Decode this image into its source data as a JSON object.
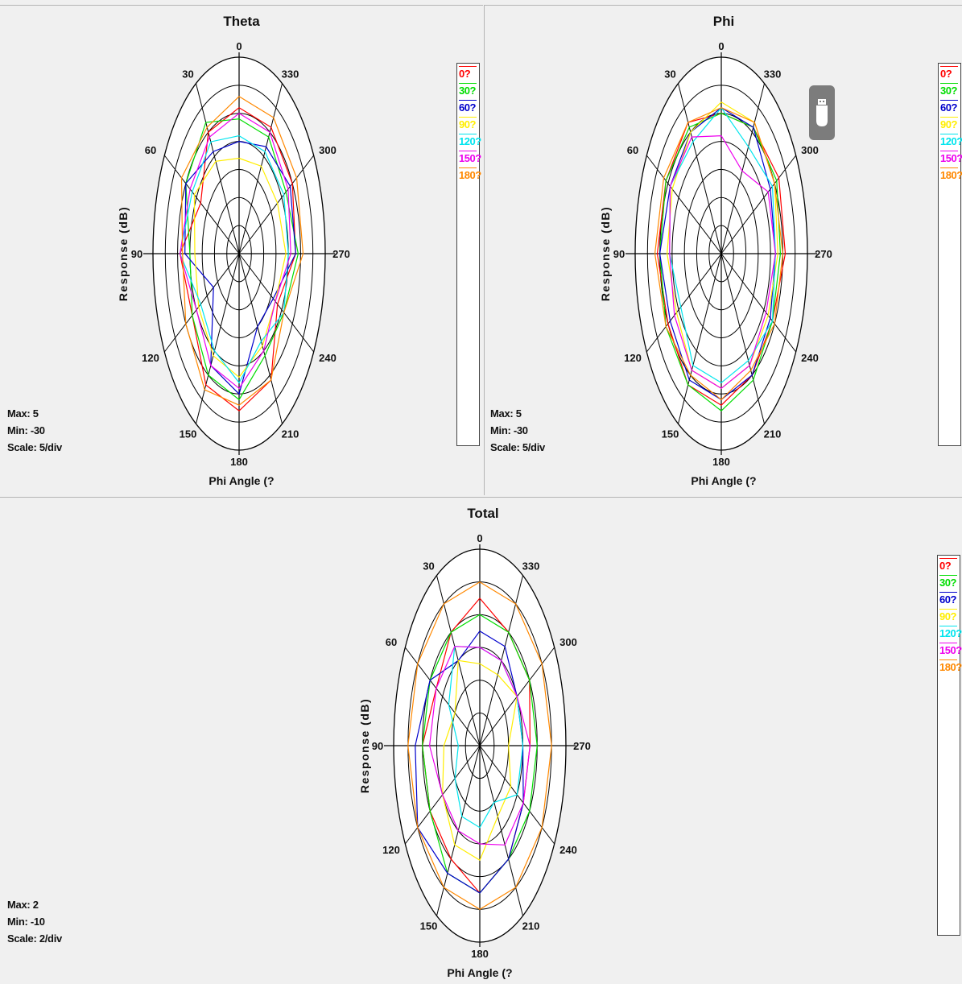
{
  "angle_labels": [
    "0",
    "30",
    "60",
    "90",
    "120",
    "150",
    "180",
    "210",
    "240",
    "270",
    "300",
    "330"
  ],
  "legend": [
    {
      "label": "0?",
      "color": "#ff0000"
    },
    {
      "label": "30?",
      "color": "#00dd00"
    },
    {
      "label": "60?",
      "color": "#0000cc"
    },
    {
      "label": "90?",
      "color": "#ffee00"
    },
    {
      "label": "120?",
      "color": "#00e5ee"
    },
    {
      "label": "150?",
      "color": "#ee00ee"
    },
    {
      "label": "180?",
      "color": "#ff8800"
    }
  ],
  "chart_data": [
    {
      "id": "theta",
      "type": "polar-line",
      "title": "Theta",
      "xlabel": "Phi Angle  (?",
      "ylabel": "Response  (dB)",
      "max": "Max: 5",
      "min": "Min: -30",
      "scale": "Scale: 5/div",
      "range": [
        -30,
        5
      ],
      "step": 5,
      "angle_direction": "counterclockwise from top",
      "series": [
        {
          "name": "0?",
          "values": [
            -4,
            -5,
            -12,
            -6,
            -8,
            -3,
            -2,
            -4,
            -12,
            -7,
            -5,
            -4
          ]
        },
        {
          "name": "30?",
          "values": [
            -6,
            -3,
            -5,
            -10,
            -8,
            -5,
            -4,
            -9,
            -9,
            -6,
            -8,
            -6
          ]
        },
        {
          "name": "60?",
          "values": [
            -10,
            -9,
            -5,
            -8,
            -18,
            -7,
            -5,
            -15,
            -14,
            -7,
            -6,
            -8
          ]
        },
        {
          "name": "90?",
          "values": [
            -13,
            -11,
            -9,
            -12,
            -11,
            -9,
            -8,
            -11,
            -13,
            -11,
            -12,
            -12
          ]
        },
        {
          "name": "120?",
          "values": [
            -9,
            -7,
            -8,
            -6,
            -12,
            -10,
            -7,
            -12,
            -9,
            -10,
            -9,
            -9
          ]
        },
        {
          "name": "150?",
          "values": [
            -5,
            -6,
            -7,
            -6,
            -10,
            -7,
            -6,
            -10,
            -13,
            -9,
            -7,
            -5
          ]
        },
        {
          "name": "180?",
          "values": [
            -2,
            -4,
            -3,
            -7,
            -5,
            -2,
            -3,
            -4,
            -9,
            -4,
            -3,
            -2
          ]
        }
      ]
    },
    {
      "id": "phi",
      "type": "polar-line",
      "title": "Phi",
      "xlabel": "Phi Angle  (?",
      "ylabel": "Response  (dB)",
      "max": "Max: 5",
      "min": "Min: -30",
      "scale": "Scale: 5/div",
      "range": [
        -30,
        5
      ],
      "step": 5,
      "angle_direction": "counterclockwise from top",
      "series": [
        {
          "name": "0?",
          "values": [
            -5,
            -3,
            -4,
            -4,
            -5,
            -3,
            -3,
            -5,
            -6,
            -4,
            -3,
            -4
          ]
        },
        {
          "name": "30?",
          "values": [
            -5,
            -4,
            -4,
            -5,
            -4,
            -3,
            -2,
            -4,
            -6,
            -6,
            -4,
            -4
          ]
        },
        {
          "name": "60?",
          "values": [
            -4,
            -5,
            -6,
            -5,
            -6,
            -4,
            -4,
            -5,
            -7,
            -8,
            -7,
            -4
          ]
        },
        {
          "name": "90?",
          "values": [
            -3,
            -5,
            -7,
            -8,
            -9,
            -6,
            -6,
            -7,
            -8,
            -7,
            -5,
            -3
          ]
        },
        {
          "name": "120?",
          "values": [
            -4,
            -7,
            -6,
            -9,
            -11,
            -7,
            -7,
            -8,
            -6,
            -8,
            -6,
            -8
          ]
        },
        {
          "name": "150?",
          "values": [
            -9,
            -6,
            -6,
            -9,
            -8,
            -6,
            -6,
            -7,
            -9,
            -8,
            -8,
            -13
          ]
        },
        {
          "name": "180?",
          "values": [
            -4,
            -3,
            -3,
            -3,
            -4,
            -5,
            -4,
            -6,
            -5,
            -5,
            -5,
            -3
          ]
        }
      ]
    },
    {
      "id": "total",
      "type": "polar-line",
      "title": "Total",
      "xlabel": "Phi Angle  (?",
      "ylabel": "Response  (dB)",
      "max": "Max: 2",
      "min": "Min: -10",
      "scale": "Scale: 2/div",
      "range": [
        -10,
        2
      ],
      "step": 2,
      "angle_direction": "counterclockwise from top",
      "series": [
        {
          "name": "0?",
          "values": [
            -1,
            -2,
            -3,
            -2,
            -2,
            -2,
            -1,
            -2,
            -3,
            -3,
            -2,
            -2
          ]
        },
        {
          "name": "30?",
          "values": [
            -2,
            -2,
            -2,
            -2,
            -2,
            -1,
            -1,
            -2,
            -2,
            -2,
            -2,
            -2
          ]
        },
        {
          "name": "60?",
          "values": [
            -3,
            -4,
            -2,
            -1,
            0,
            -1,
            -1,
            -2,
            -3,
            -4,
            -4,
            -3
          ]
        },
        {
          "name": "90?",
          "values": [
            -5,
            -4,
            -6,
            -5,
            -4,
            -3,
            -3,
            -5,
            -5,
            -6,
            -4,
            -5
          ]
        },
        {
          "name": "120?",
          "values": [
            -4,
            -3,
            -5,
            -7,
            -6,
            -5,
            -5,
            -6,
            -4,
            -4,
            -4,
            -4
          ]
        },
        {
          "name": "150?",
          "values": [
            -4,
            -3,
            -3,
            -3,
            -4,
            -4,
            -4,
            -3,
            -3,
            -3,
            -4,
            -4
          ]
        },
        {
          "name": "180?",
          "values": [
            0,
            0,
            0,
            0,
            0,
            0,
            0,
            0,
            0,
            0,
            0,
            0
          ]
        }
      ]
    }
  ]
}
